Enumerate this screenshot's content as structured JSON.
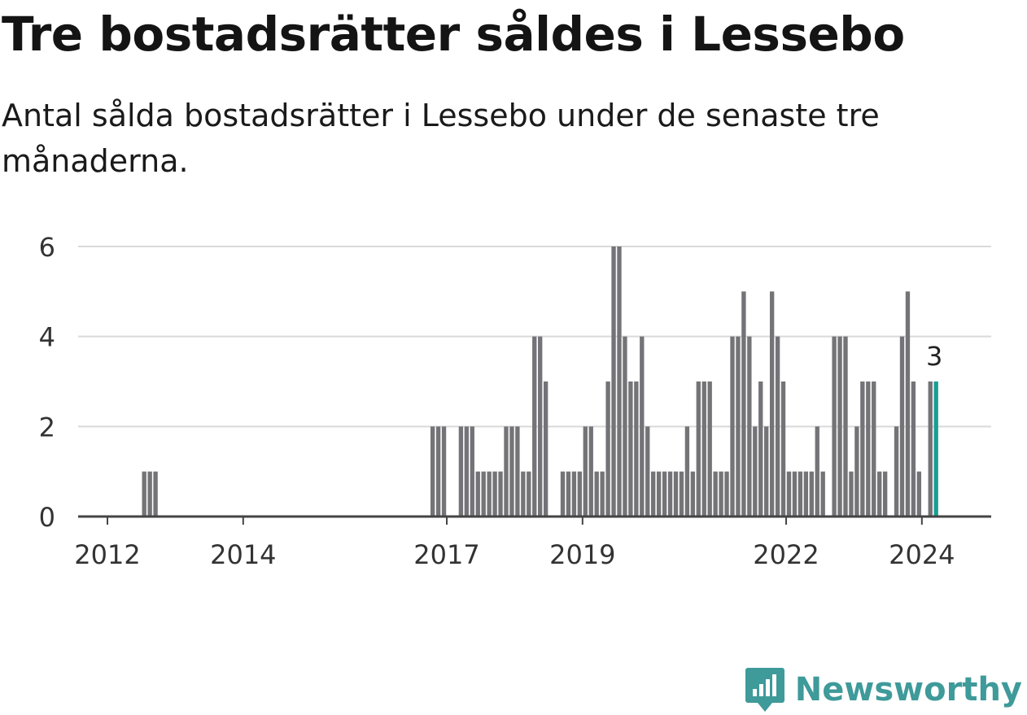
{
  "header": {
    "title": "Tre bostadsrätter såldes i Lessebo",
    "subtitle": "Antal sålda bostadsrätter i Lessebo under de senaste tre månaderna."
  },
  "branding": {
    "name": "Newsworthy",
    "icon": "newsworthy-logo-icon",
    "color": "#3f9a9a"
  },
  "chart_data": {
    "type": "bar",
    "title": "Tre bostadsrätter såldes i Lessebo",
    "subtitle": "Antal sålda bostadsrätter i Lessebo under de senaste tre månaderna.",
    "ylim": [
      0,
      6
    ],
    "yticks": [
      "0",
      "2",
      "4",
      "6"
    ],
    "xticks": [
      "2012",
      "2014",
      "2017",
      "2019",
      "2022",
      "2024"
    ],
    "grid": true,
    "bar_color": "#747478",
    "highlight_color": "#16a093",
    "highlight_label": "3",
    "series": [
      {
        "values": [
          {
            "x": "2012-07",
            "y": 1
          },
          {
            "x": "2012-08",
            "y": 1
          },
          {
            "x": "2012-09",
            "y": 1
          },
          {
            "x": "2016-10",
            "y": 2
          },
          {
            "x": "2016-11",
            "y": 2
          },
          {
            "x": "2016-12",
            "y": 2
          },
          {
            "x": "2017-03",
            "y": 2
          },
          {
            "x": "2017-04",
            "y": 2
          },
          {
            "x": "2017-05",
            "y": 2
          },
          {
            "x": "2017-06",
            "y": 1
          },
          {
            "x": "2017-07",
            "y": 1
          },
          {
            "x": "2017-08",
            "y": 1
          },
          {
            "x": "2017-09",
            "y": 1
          },
          {
            "x": "2017-10",
            "y": 1
          },
          {
            "x": "2017-11",
            "y": 2
          },
          {
            "x": "2017-12",
            "y": 2
          },
          {
            "x": "2018-01",
            "y": 2
          },
          {
            "x": "2018-02",
            "y": 1
          },
          {
            "x": "2018-03",
            "y": 1
          },
          {
            "x": "2018-04",
            "y": 4
          },
          {
            "x": "2018-05",
            "y": 4
          },
          {
            "x": "2018-06",
            "y": 3
          },
          {
            "x": "2018-09",
            "y": 1
          },
          {
            "x": "2018-10",
            "y": 1
          },
          {
            "x": "2018-11",
            "y": 1
          },
          {
            "x": "2018-12",
            "y": 1
          },
          {
            "x": "2019-01",
            "y": 2
          },
          {
            "x": "2019-02",
            "y": 2
          },
          {
            "x": "2019-03",
            "y": 1
          },
          {
            "x": "2019-04",
            "y": 1
          },
          {
            "x": "2019-05",
            "y": 3
          },
          {
            "x": "2019-06",
            "y": 6
          },
          {
            "x": "2019-07",
            "y": 6
          },
          {
            "x": "2019-08",
            "y": 4
          },
          {
            "x": "2019-09",
            "y": 3
          },
          {
            "x": "2019-10",
            "y": 3
          },
          {
            "x": "2019-11",
            "y": 4
          },
          {
            "x": "2019-12",
            "y": 2
          },
          {
            "x": "2020-01",
            "y": 1
          },
          {
            "x": "2020-02",
            "y": 1
          },
          {
            "x": "2020-03",
            "y": 1
          },
          {
            "x": "2020-04",
            "y": 1
          },
          {
            "x": "2020-05",
            "y": 1
          },
          {
            "x": "2020-06",
            "y": 1
          },
          {
            "x": "2020-07",
            "y": 2
          },
          {
            "x": "2020-08",
            "y": 1
          },
          {
            "x": "2020-09",
            "y": 3
          },
          {
            "x": "2020-10",
            "y": 3
          },
          {
            "x": "2020-11",
            "y": 3
          },
          {
            "x": "2020-12",
            "y": 1
          },
          {
            "x": "2021-01",
            "y": 1
          },
          {
            "x": "2021-02",
            "y": 1
          },
          {
            "x": "2021-03",
            "y": 4
          },
          {
            "x": "2021-04",
            "y": 4
          },
          {
            "x": "2021-05",
            "y": 5
          },
          {
            "x": "2021-06",
            "y": 4
          },
          {
            "x": "2021-07",
            "y": 2
          },
          {
            "x": "2021-08",
            "y": 3
          },
          {
            "x": "2021-09",
            "y": 2
          },
          {
            "x": "2021-10",
            "y": 5
          },
          {
            "x": "2021-11",
            "y": 4
          },
          {
            "x": "2021-12",
            "y": 3
          },
          {
            "x": "2022-01",
            "y": 1
          },
          {
            "x": "2022-02",
            "y": 1
          },
          {
            "x": "2022-03",
            "y": 1
          },
          {
            "x": "2022-04",
            "y": 1
          },
          {
            "x": "2022-05",
            "y": 1
          },
          {
            "x": "2022-06",
            "y": 2
          },
          {
            "x": "2022-07",
            "y": 1
          },
          {
            "x": "2022-09",
            "y": 4
          },
          {
            "x": "2022-10",
            "y": 4
          },
          {
            "x": "2022-11",
            "y": 4
          },
          {
            "x": "2022-12",
            "y": 1
          },
          {
            "x": "2023-01",
            "y": 2
          },
          {
            "x": "2023-02",
            "y": 3
          },
          {
            "x": "2023-03",
            "y": 3
          },
          {
            "x": "2023-04",
            "y": 3
          },
          {
            "x": "2023-05",
            "y": 1
          },
          {
            "x": "2023-06",
            "y": 1
          },
          {
            "x": "2023-08",
            "y": 2
          },
          {
            "x": "2023-09",
            "y": 4
          },
          {
            "x": "2023-10",
            "y": 5
          },
          {
            "x": "2023-11",
            "y": 3
          },
          {
            "x": "2023-12",
            "y": 1
          },
          {
            "x": "2024-02",
            "y": 3
          },
          {
            "x": "2024-03",
            "y": 3
          }
        ]
      }
    ]
  }
}
